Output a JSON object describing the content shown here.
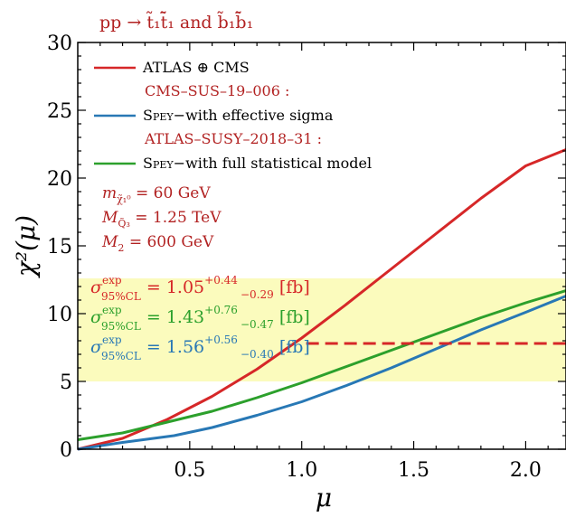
{
  "chart_data": {
    "type": "line",
    "title": "pp → t̃₁t̃̄₁ and b̃₁b̃̄₁",
    "xlabel": "μ",
    "ylabel": "χ²(μ)",
    "xlim": [
      0.0,
      2.18
    ],
    "ylim": [
      0,
      30
    ],
    "xticks": [
      0.5,
      1.0,
      1.5,
      2.0
    ],
    "xtick_labels": [
      "0.5",
      "1.0",
      "1.5",
      "2.0"
    ],
    "yticks": [
      0,
      5,
      10,
      15,
      20,
      25,
      30
    ],
    "ytick_labels": [
      "0",
      "5",
      "10",
      "15",
      "20",
      "25",
      "30"
    ],
    "grid": false,
    "legend_position": "top-left",
    "series": [
      {
        "name": "ATLAS ⊕ CMS",
        "color": "#d62728",
        "x": [
          0.0,
          0.2,
          0.4,
          0.6,
          0.8,
          1.0,
          1.2,
          1.4,
          1.6,
          1.8,
          2.0,
          2.18
        ],
        "y": [
          0.0,
          0.8,
          2.2,
          3.9,
          5.9,
          8.2,
          10.7,
          13.3,
          15.9,
          18.5,
          20.9,
          22.1
        ]
      },
      {
        "name": "Spey−with effective sigma",
        "color": "#2878b5",
        "x": [
          0.0,
          0.2,
          0.43,
          0.6,
          0.8,
          1.0,
          1.2,
          1.4,
          1.6,
          1.8,
          2.0,
          2.18
        ],
        "y": [
          0.0,
          0.5,
          1.0,
          1.6,
          2.5,
          3.5,
          4.7,
          6.0,
          7.4,
          8.8,
          10.1,
          11.3
        ]
      },
      {
        "name": "Spey−with full statistical model",
        "color": "#2ca02c",
        "x": [
          0.0,
          0.2,
          0.4,
          0.6,
          0.8,
          1.0,
          1.2,
          1.4,
          1.6,
          1.8,
          2.0,
          2.18
        ],
        "y": [
          0.7,
          1.2,
          2.0,
          2.8,
          3.8,
          4.9,
          6.1,
          7.3,
          8.5,
          9.7,
          10.8,
          11.7
        ]
      }
    ],
    "reference_line": {
      "color": "#d62728",
      "style": "dashed",
      "y": 7.8,
      "x_from": 1.02,
      "x_to": 2.18
    },
    "band": {
      "color": "#fbfbbd",
      "y_from": 5.0,
      "y_to": 12.6
    },
    "legend": {
      "entries": [
        {
          "type": "line",
          "color": "#d62728",
          "label": "ATLAS ⊕ CMS"
        },
        {
          "type": "note",
          "label": "CMS–SUS–19–006 :"
        },
        {
          "type": "line",
          "color": "#2878b5",
          "label_smallcaps": "Spey",
          "label_rest": "−with effective sigma"
        },
        {
          "type": "note",
          "label": "ATLAS–SUSY–2018–31 :"
        },
        {
          "type": "line",
          "color": "#2ca02c",
          "label_smallcaps": "Spey",
          "label_rest": "−with full statistical model"
        }
      ]
    },
    "parameters": {
      "line1_sym": "m",
      "line1_sub": "χ̃₁⁰",
      "line1_val": " = 60 GeV",
      "line2_sym": "M",
      "line2_sub": "Q̃₃",
      "line2_val": " = 1.25 TeV",
      "line3_sym": "M",
      "line3_sub": "2",
      "line3_val": " = 600 GeV"
    },
    "limits": [
      {
        "color": "#d62728",
        "sym": "σ",
        "sup": "exp",
        "sub": "95%CL",
        "value": " = 1.05",
        "plus": "+0.44",
        "minus": "−0.29",
        "unit": " [fb]"
      },
      {
        "color": "#2ca02c",
        "sym": "σ",
        "sup": "exp",
        "sub": "95%CL",
        "value": " = 1.43",
        "plus": "+0.76",
        "minus": "−0.47",
        "unit": " [fb]"
      },
      {
        "color": "#2878b5",
        "sym": "σ",
        "sup": "exp",
        "sub": "95%CL",
        "value": " = 1.56",
        "plus": "+0.56",
        "minus": "−0.40",
        "unit": " [fb]"
      }
    ]
  }
}
